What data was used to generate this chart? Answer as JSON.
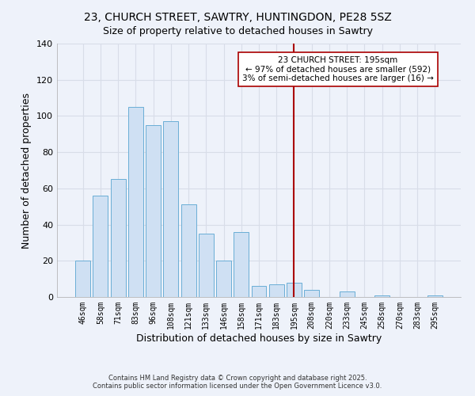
{
  "title": "23, CHURCH STREET, SAWTRY, HUNTINGDON, PE28 5SZ",
  "subtitle": "Size of property relative to detached houses in Sawtry",
  "xlabel": "Distribution of detached houses by size in Sawtry",
  "ylabel": "Number of detached properties",
  "bar_labels": [
    "46sqm",
    "58sqm",
    "71sqm",
    "83sqm",
    "96sqm",
    "108sqm",
    "121sqm",
    "133sqm",
    "146sqm",
    "158sqm",
    "171sqm",
    "183sqm",
    "195sqm",
    "208sqm",
    "220sqm",
    "233sqm",
    "245sqm",
    "258sqm",
    "270sqm",
    "283sqm",
    "295sqm"
  ],
  "bar_values": [
    20,
    56,
    65,
    105,
    95,
    97,
    51,
    35,
    20,
    36,
    6,
    7,
    8,
    4,
    0,
    3,
    0,
    1,
    0,
    0,
    1
  ],
  "bar_color": "#cfe0f3",
  "bar_edge_color": "#6aaed6",
  "vline_x": 12,
  "vline_color": "#aa0000",
  "ylim": [
    0,
    140
  ],
  "yticks": [
    0,
    20,
    40,
    60,
    80,
    100,
    120,
    140
  ],
  "annotation_title": "23 CHURCH STREET: 195sqm",
  "annotation_line1": "← 97% of detached houses are smaller (592)",
  "annotation_line2": "3% of semi-detached houses are larger (16) →",
  "annotation_box_color": "#ffffff",
  "annotation_box_edge": "#aa0000",
  "footer_line1": "Contains HM Land Registry data © Crown copyright and database right 2025.",
  "footer_line2": "Contains public sector information licensed under the Open Government Licence v3.0.",
  "background_color": "#eef2fa",
  "grid_color": "#d8dde8",
  "title_fontsize": 10,
  "subtitle_fontsize": 9
}
